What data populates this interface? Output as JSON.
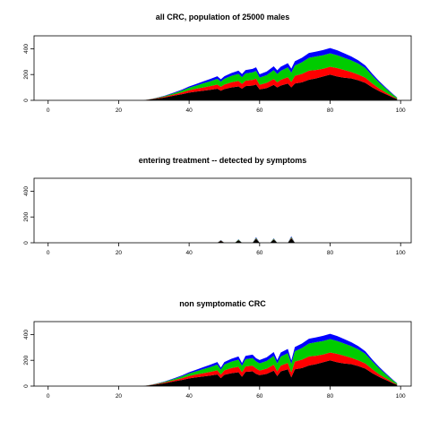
{
  "chart_data": [
    {
      "type": "area",
      "title": "all CRC, population of 25000 males",
      "xlabel": "",
      "ylabel": "",
      "xlim": [
        -4,
        103
      ],
      "ylim": [
        0,
        500
      ],
      "xticks": [
        0,
        20,
        40,
        60,
        80,
        100
      ],
      "yticks": [
        0,
        200,
        400
      ],
      "stacked": true,
      "grid": false,
      "colors": [
        "#000000",
        "#ff0000",
        "#00cc00",
        "#0000ff"
      ],
      "x": [
        0,
        27,
        30,
        33,
        36,
        38,
        40,
        42,
        44,
        46,
        48,
        49,
        50,
        52,
        54,
        55,
        56,
        58,
        59,
        60,
        62,
        64,
        65,
        66,
        68,
        69,
        70,
        72,
        74,
        76,
        78,
        80,
        82,
        84,
        86,
        88,
        90,
        92,
        94,
        96,
        98,
        99
      ],
      "series": [
        {
          "values": [
            0,
            0,
            10,
            22,
            38,
            48,
            60,
            68,
            75,
            82,
            90,
            75,
            88,
            100,
            108,
            90,
            110,
            115,
            122,
            85,
            95,
            120,
            100,
            115,
            130,
            100,
            130,
            140,
            160,
            170,
            185,
            200,
            185,
            175,
            170,
            155,
            135,
            100,
            70,
            45,
            20,
            10
          ]
        },
        {
          "values": [
            0,
            0,
            3,
            6,
            10,
            14,
            18,
            22,
            25,
            28,
            32,
            30,
            34,
            40,
            42,
            38,
            42,
            44,
            46,
            36,
            40,
            46,
            40,
            44,
            50,
            42,
            60,
            65,
            70,
            65,
            60,
            60,
            65,
            60,
            50,
            45,
            40,
            30,
            20,
            12,
            6,
            3
          ]
        },
        {
          "values": [
            0,
            0,
            2,
            5,
            10,
            14,
            20,
            25,
            32,
            38,
            45,
            40,
            45,
            50,
            55,
            52,
            56,
            58,
            60,
            55,
            60,
            68,
            64,
            70,
            75,
            72,
            80,
            90,
            100,
            105,
            105,
            105,
            100,
            95,
            90,
            85,
            75,
            60,
            45,
            30,
            15,
            8
          ]
        },
        {
          "values": [
            0,
            0,
            1,
            3,
            5,
            7,
            10,
            12,
            15,
            18,
            20,
            18,
            20,
            22,
            25,
            24,
            26,
            27,
            28,
            26,
            28,
            30,
            29,
            31,
            33,
            32,
            33,
            35,
            37,
            38,
            40,
            40,
            38,
            35,
            30,
            25,
            20,
            15,
            12,
            8,
            4,
            2
          ]
        }
      ]
    },
    {
      "type": "area",
      "title": "entering treatment -- detected by symptoms",
      "xlabel": "",
      "ylabel": "",
      "xlim": [
        -4,
        103
      ],
      "ylim": [
        0,
        500
      ],
      "xticks": [
        0,
        20,
        40,
        60,
        80,
        100
      ],
      "yticks": [
        0,
        200,
        400
      ],
      "stacked": true,
      "grid": false,
      "colors": [
        "#000000",
        "#ff0000",
        "#00cc00",
        "#0000ff"
      ],
      "x": [
        0,
        48,
        49,
        50,
        53,
        54,
        55,
        58,
        59,
        60,
        63,
        64,
        65,
        68,
        69,
        70,
        99
      ],
      "series": [
        {
          "values": [
            0,
            0,
            15,
            0,
            0,
            20,
            0,
            0,
            30,
            0,
            0,
            25,
            0,
            0,
            35,
            0,
            0
          ]
        },
        {
          "values": [
            0,
            0,
            2,
            0,
            0,
            2,
            0,
            0,
            4,
            0,
            0,
            3,
            0,
            0,
            4,
            0,
            0
          ]
        },
        {
          "values": [
            0,
            0,
            3,
            0,
            0,
            3,
            0,
            0,
            5,
            0,
            0,
            4,
            0,
            0,
            6,
            0,
            0
          ]
        },
        {
          "values": [
            0,
            0,
            2,
            0,
            0,
            2,
            0,
            0,
            4,
            0,
            0,
            3,
            0,
            0,
            5,
            0,
            0
          ]
        }
      ]
    },
    {
      "type": "area",
      "title": "non symptomatic CRC",
      "xlabel": "",
      "ylabel": "",
      "xlim": [
        -4,
        103
      ],
      "ylim": [
        0,
        500
      ],
      "xticks": [
        0,
        20,
        40,
        60,
        80,
        100
      ],
      "yticks": [
        0,
        200,
        400
      ],
      "stacked": true,
      "grid": false,
      "colors": [
        "#000000",
        "#ff0000",
        "#00cc00",
        "#0000ff"
      ],
      "x": [
        0,
        27,
        30,
        33,
        36,
        38,
        40,
        42,
        44,
        46,
        48,
        49,
        50,
        52,
        54,
        55,
        56,
        58,
        59,
        60,
        62,
        64,
        65,
        66,
        68,
        69,
        70,
        72,
        74,
        76,
        78,
        80,
        82,
        84,
        86,
        88,
        90,
        92,
        94,
        96,
        98,
        99
      ],
      "series": [
        {
          "values": [
            0,
            0,
            10,
            22,
            38,
            48,
            60,
            68,
            75,
            82,
            90,
            62,
            88,
            100,
            108,
            72,
            110,
            115,
            95,
            85,
            95,
            120,
            78,
            115,
            130,
            68,
            130,
            140,
            160,
            170,
            185,
            200,
            185,
            175,
            170,
            155,
            135,
            100,
            70,
            45,
            20,
            10
          ]
        },
        {
          "values": [
            0,
            0,
            3,
            6,
            10,
            14,
            18,
            22,
            25,
            28,
            32,
            28,
            34,
            40,
            42,
            36,
            42,
            44,
            42,
            36,
            40,
            46,
            37,
            44,
            50,
            38,
            60,
            65,
            70,
            65,
            60,
            60,
            65,
            60,
            50,
            45,
            40,
            30,
            20,
            12,
            6,
            3
          ]
        },
        {
          "values": [
            0,
            0,
            2,
            5,
            10,
            14,
            20,
            25,
            32,
            38,
            45,
            37,
            45,
            50,
            55,
            49,
            56,
            58,
            55,
            55,
            60,
            68,
            60,
            70,
            75,
            66,
            80,
            90,
            100,
            105,
            105,
            105,
            100,
            95,
            90,
            85,
            75,
            60,
            45,
            30,
            15,
            8
          ]
        },
        {
          "values": [
            0,
            0,
            1,
            3,
            5,
            7,
            10,
            12,
            15,
            18,
            20,
            16,
            20,
            22,
            25,
            22,
            26,
            27,
            24,
            26,
            28,
            30,
            26,
            31,
            33,
            27,
            33,
            35,
            37,
            38,
            40,
            40,
            38,
            35,
            30,
            25,
            20,
            15,
            12,
            8,
            4,
            2
          ]
        }
      ]
    }
  ]
}
